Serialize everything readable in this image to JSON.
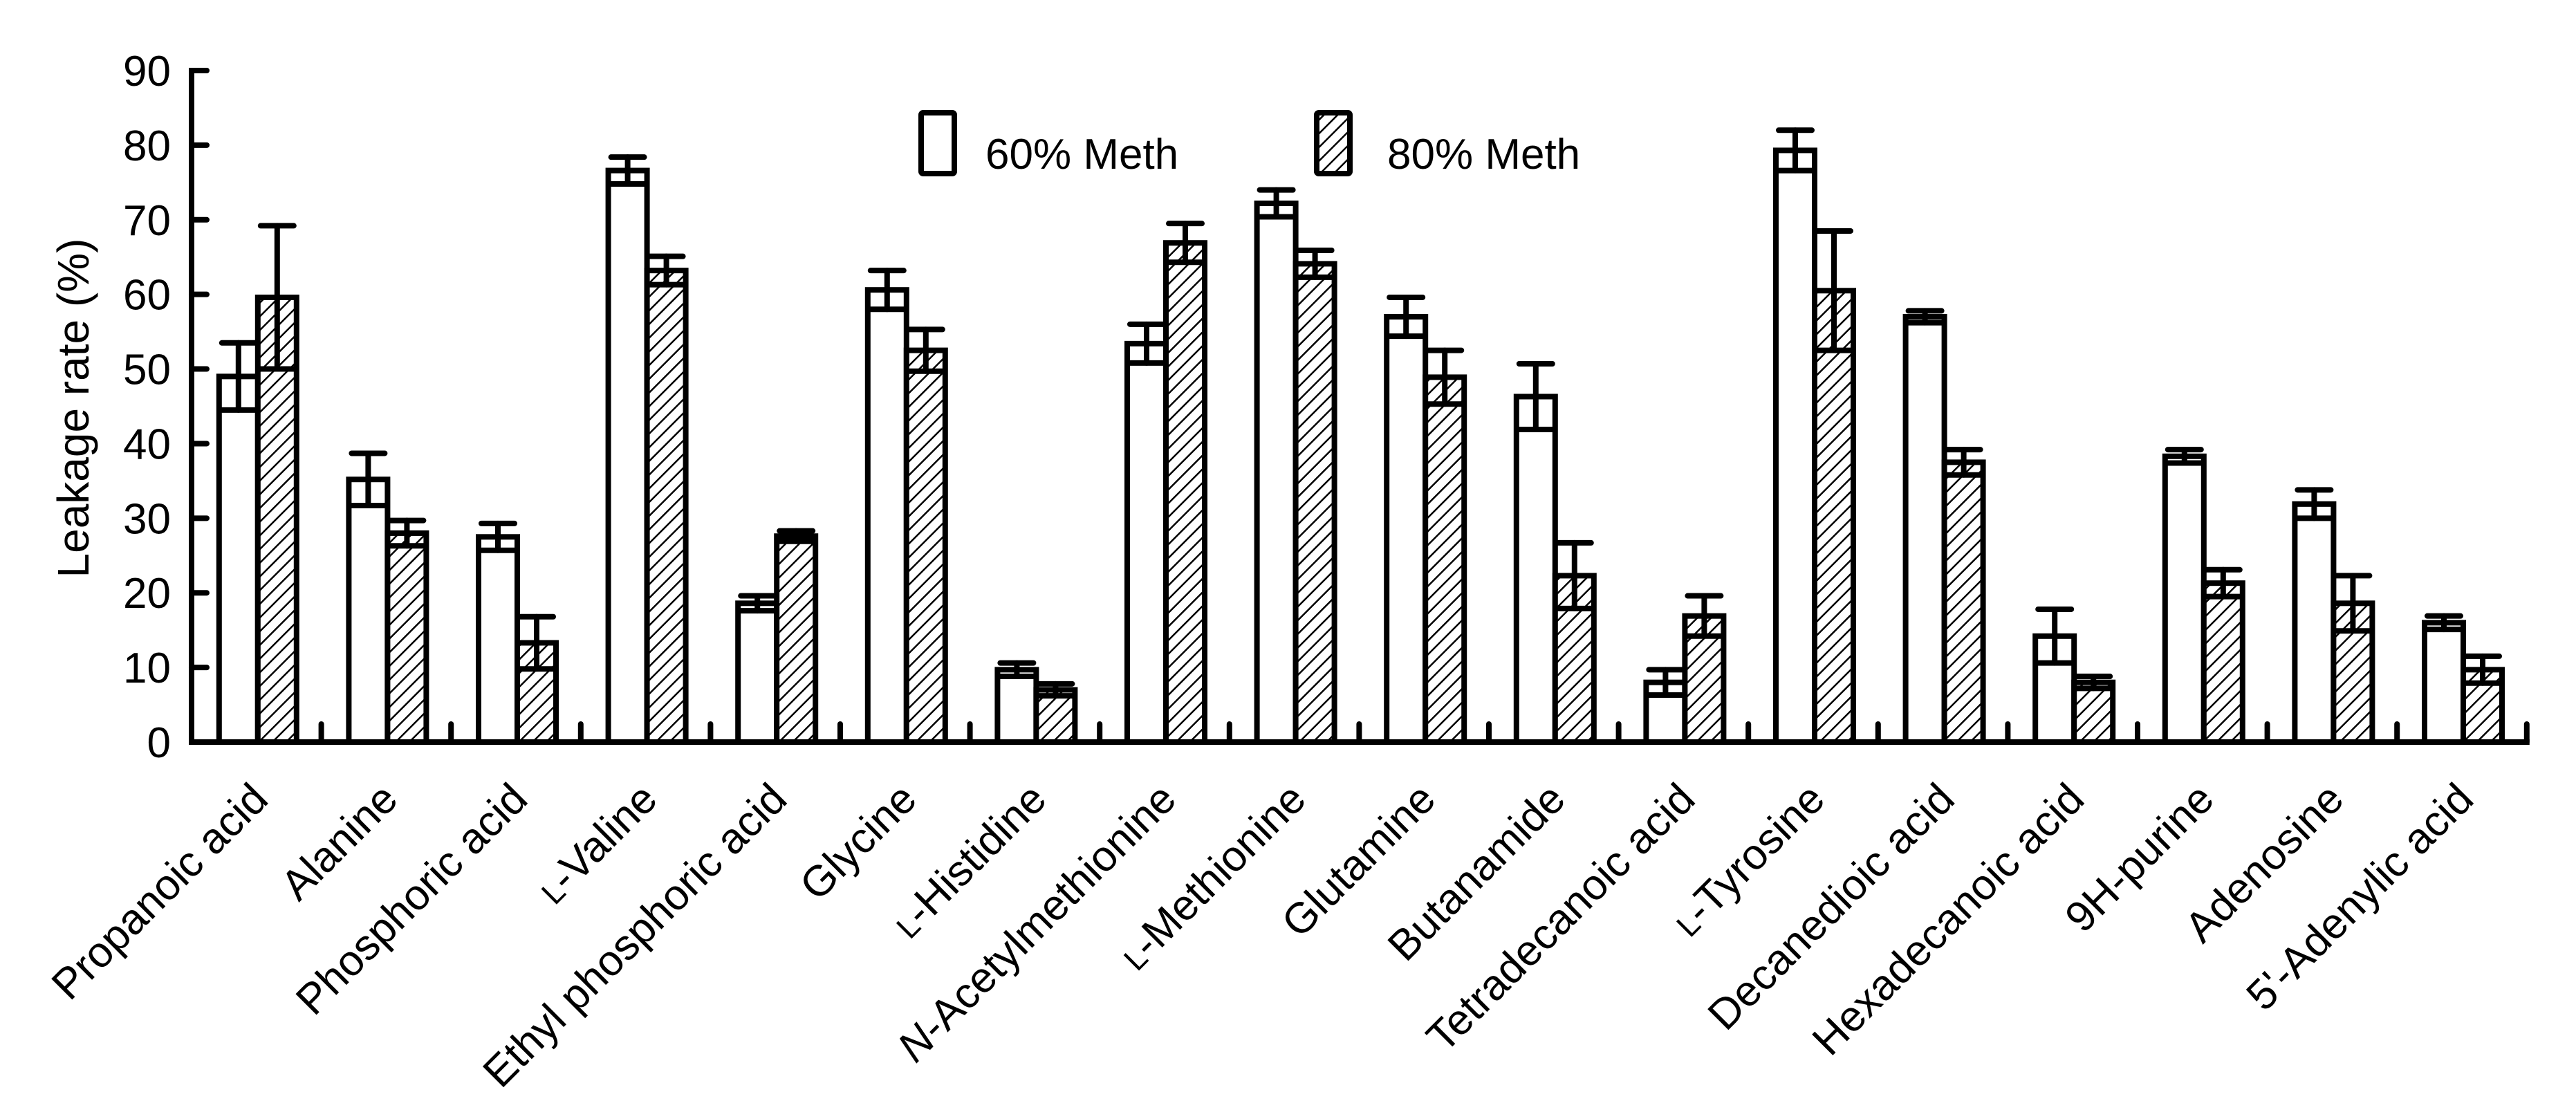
{
  "chart_data": {
    "type": "bar",
    "title": "",
    "xlabel": "",
    "ylabel": "Leakage rate (%)",
    "ylim": [
      0,
      90
    ],
    "yticks": [
      0,
      10,
      20,
      30,
      40,
      50,
      60,
      70,
      80,
      90
    ],
    "grid": false,
    "legend_position": "top-center",
    "categories": [
      {
        "prefix": "",
        "prefix_style": "",
        "text": "Propanoic acid"
      },
      {
        "prefix": "",
        "prefix_style": "",
        "text": "Alanine"
      },
      {
        "prefix": "",
        "prefix_style": "",
        "text": "Phosphoric acid"
      },
      {
        "prefix": "L",
        "prefix_style": "smallcaps",
        "text": "-Valine"
      },
      {
        "prefix": "",
        "prefix_style": "",
        "text": "Ethyl phosphoric acid"
      },
      {
        "prefix": "",
        "prefix_style": "",
        "text": "Glycine"
      },
      {
        "prefix": "L",
        "prefix_style": "smallcaps",
        "text": "-Histidine"
      },
      {
        "prefix": "N",
        "prefix_style": "italic",
        "text": "-Acetylmethionine"
      },
      {
        "prefix": "L",
        "prefix_style": "smallcaps",
        "text": "-Methionine"
      },
      {
        "prefix": "",
        "prefix_style": "",
        "text": "Glutamine"
      },
      {
        "prefix": "",
        "prefix_style": "",
        "text": "Butanamide"
      },
      {
        "prefix": "",
        "prefix_style": "",
        "text": "Tetradecanoic acid"
      },
      {
        "prefix": "L",
        "prefix_style": "smallcaps",
        "text": "-Tyrosine"
      },
      {
        "prefix": "",
        "prefix_style": "",
        "text": "Decanedioic acid"
      },
      {
        "prefix": "",
        "prefix_style": "",
        "text": "Hexadecanoic acid"
      },
      {
        "prefix": "",
        "prefix_style": "",
        "text": "9H-purine"
      },
      {
        "prefix": "",
        "prefix_style": "",
        "text": "Adenosine"
      },
      {
        "prefix": "",
        "prefix_style": "",
        "text": "5'-Adenylic acid"
      }
    ],
    "series": [
      {
        "name": "60% Meth",
        "fill": "white",
        "values": [
          49.0,
          35.2,
          27.5,
          76.6,
          18.6,
          60.6,
          9.7,
          53.4,
          72.2,
          57.0,
          46.3,
          8.0,
          79.3,
          57.0,
          14.2,
          38.3,
          31.9,
          16.0
        ],
        "error": [
          4.5,
          3.5,
          1.8,
          1.8,
          1.0,
          2.6,
          0.9,
          2.6,
          1.8,
          2.6,
          4.4,
          1.7,
          2.7,
          0.8,
          3.6,
          0.9,
          1.9,
          0.9
        ]
      },
      {
        "name": "80% Meth",
        "fill": "hatched",
        "values": [
          59.6,
          28.0,
          13.3,
          63.2,
          27.6,
          52.5,
          7.0,
          66.9,
          64.1,
          48.9,
          22.3,
          16.9,
          60.5,
          37.5,
          8.0,
          21.3,
          18.6,
          9.7
        ],
        "error": [
          9.6,
          1.7,
          3.5,
          1.9,
          0.7,
          2.8,
          0.8,
          2.6,
          1.8,
          3.6,
          4.4,
          2.7,
          8.0,
          1.7,
          0.8,
          1.8,
          3.7,
          1.8
        ]
      }
    ]
  },
  "colors": {
    "ink": "#000000",
    "background": "#ffffff"
  }
}
